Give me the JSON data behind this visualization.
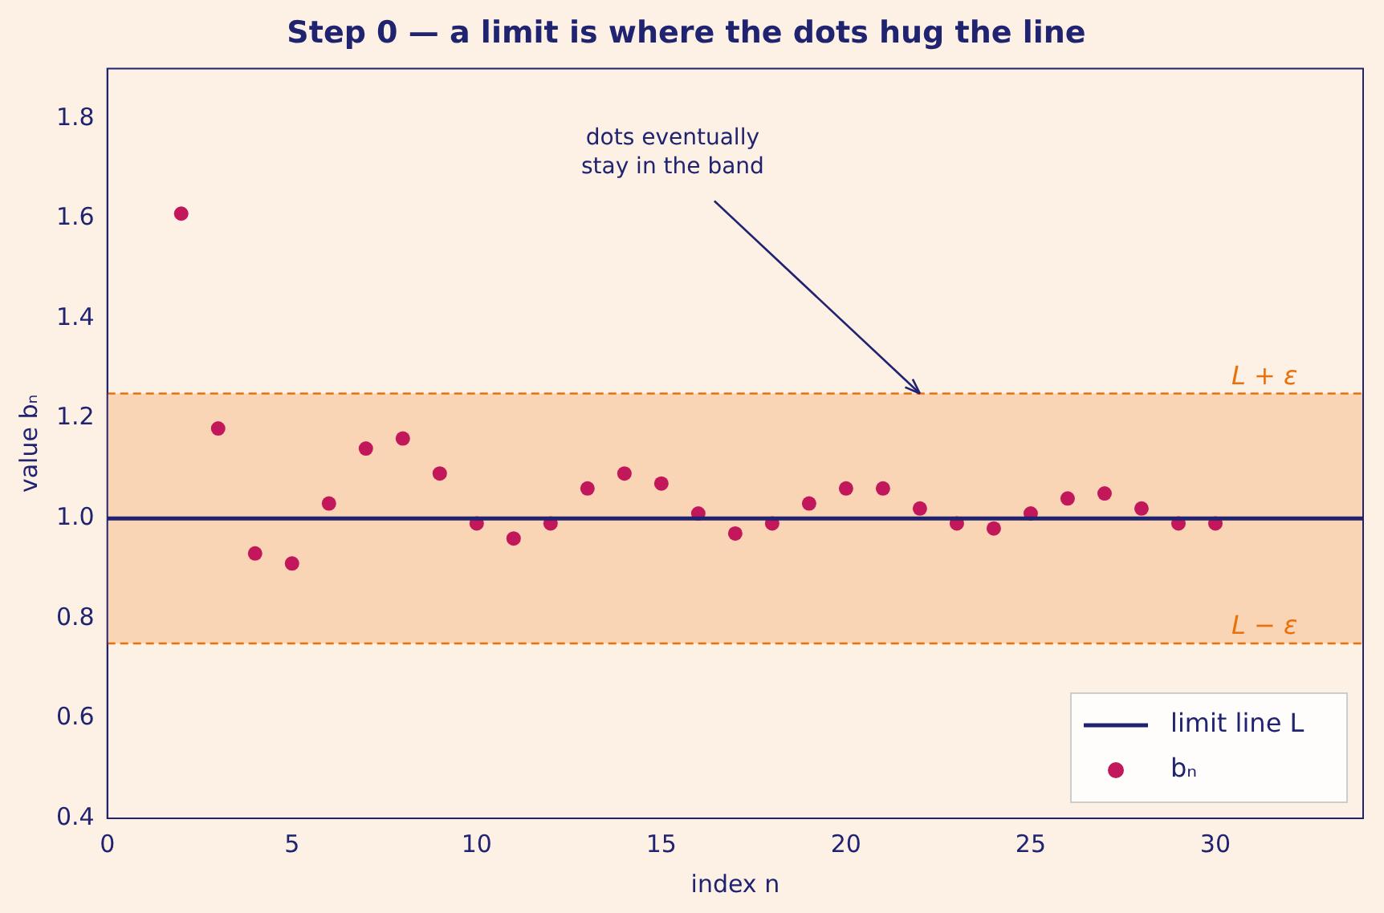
{
  "chart_data": {
    "type": "scatter",
    "title": "Step 0 — a limit is where the dots hug the line",
    "xlabel": "index n",
    "ylabel": "value bₙ",
    "series": [
      {
        "name": "limit line L",
        "type": "line",
        "color": "#1f2370",
        "x": [
          0,
          34
        ],
        "values": [
          1,
          1
        ],
        "marker": "none",
        "line_style": "solid"
      },
      {
        "name": "bₙ",
        "type": "scatter",
        "color": "#c2185b",
        "marker": "circle",
        "x": [
          2,
          3,
          4,
          5,
          6,
          7,
          8,
          9,
          10,
          11,
          12,
          13,
          14,
          15,
          16,
          17,
          18,
          19,
          20,
          21,
          22,
          23,
          24,
          25,
          26,
          27,
          28,
          29,
          30
        ],
        "values": [
          1.61,
          1.18,
          0.93,
          0.91,
          1.03,
          1.14,
          1.16,
          1.09,
          0.99,
          0.96,
          0.99,
          1.06,
          1.09,
          1.07,
          1.01,
          0.97,
          0.99,
          1.03,
          1.06,
          1.06,
          1.02,
          0.99,
          0.98,
          1.01,
          1.04,
          1.05,
          1.02,
          0.99,
          0.99
        ]
      }
    ],
    "xlim": [
      0,
      34
    ],
    "xticks": [
      0,
      5,
      10,
      15,
      20,
      25,
      30
    ],
    "ylim": [
      0.4,
      1.9
    ],
    "yticks": [
      0.4,
      0.6,
      0.8,
      {
        "value": 1,
        "label": "1.0"
      },
      1.2,
      1.4,
      1.6,
      1.8
    ],
    "bands": [
      {
        "axis": "y",
        "from": 0.75,
        "to": 1.25,
        "color": "#f9d5b5"
      }
    ],
    "ref_lines": [
      {
        "axis": "y",
        "value": 1.25,
        "label": "L + ε",
        "color": "#e8710a",
        "line_style": "dashed"
      },
      {
        "axis": "y",
        "value": 0.75,
        "label": "L − ε",
        "color": "#e8710a",
        "line_style": "dashed"
      }
    ],
    "annotations": [
      {
        "text": "dots eventually\nstay in the band",
        "x": 22,
        "y": 1.25
      }
    ],
    "grid": false,
    "legend": "bottom right"
  }
}
